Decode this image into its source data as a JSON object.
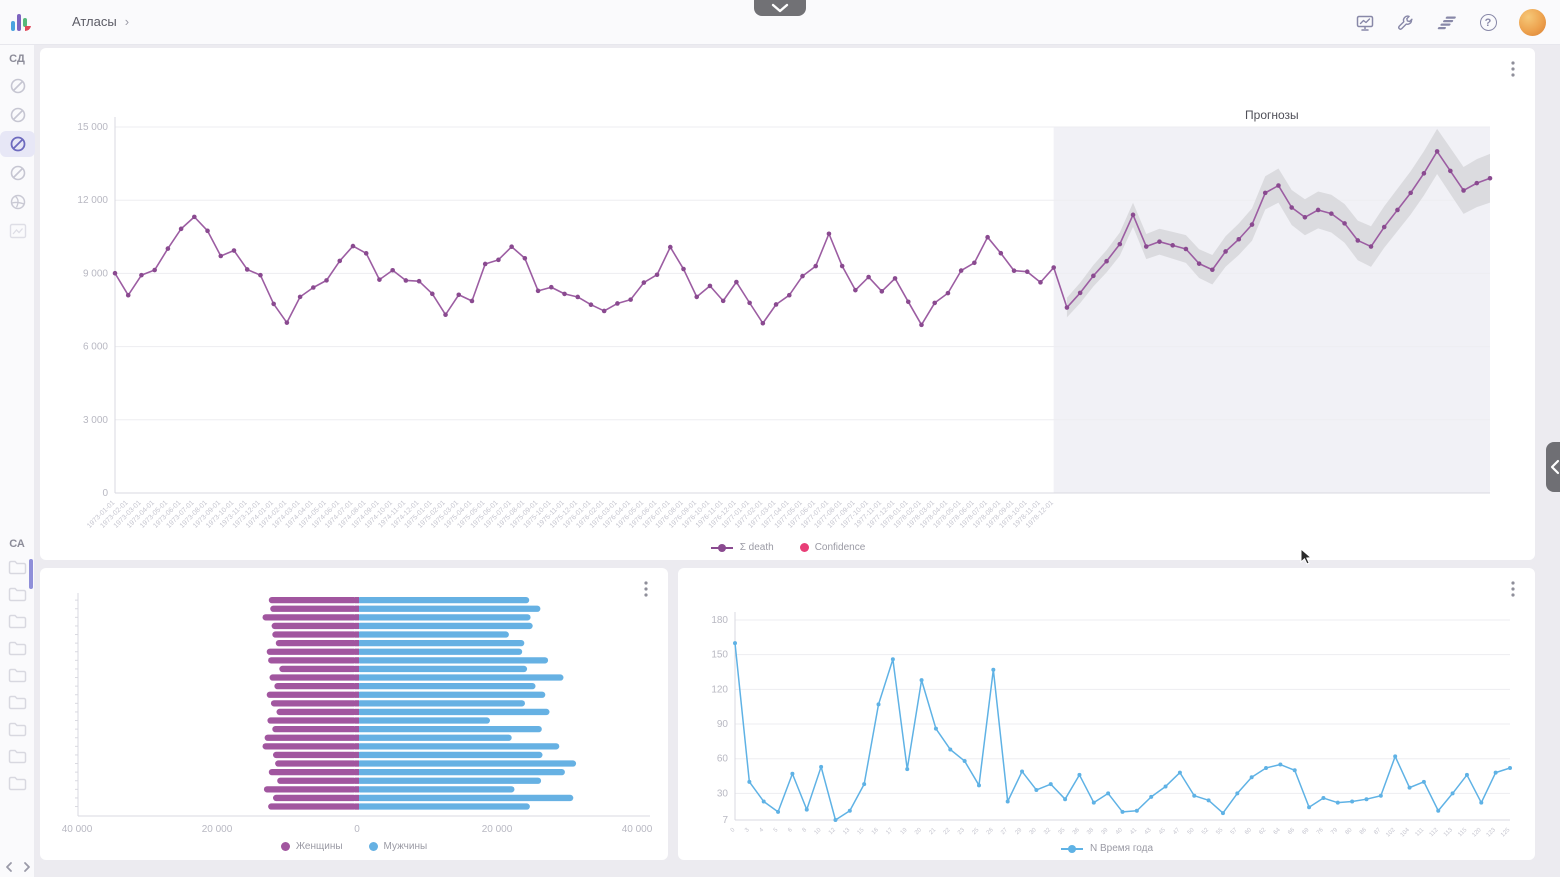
{
  "topbar": {
    "breadcrumb": "Атласы",
    "breadcrumb_arrow": "›",
    "help_glyph": "?",
    "icons": [
      "presentation-chart-icon",
      "wrench-icon",
      "stacked-lines-icon",
      "help-icon",
      "user-avatar"
    ]
  },
  "sidebar": {
    "top_label": "СД",
    "bottom_label": "СА",
    "top_icons": [
      "atlas-icon",
      "atlas-icon",
      "atlas-icon-selected",
      "atlas-icon",
      "globe-icon",
      "image-icon"
    ],
    "folder_count": 9
  },
  "colors": {
    "main_line": "#9c5da2",
    "main_dot": "#8a4a90",
    "confidence_pink": "#e83e77",
    "band_gray": "#d7d7da",
    "forecast_region": "#f1f1f6",
    "pyramid_women": "#a1569f",
    "pyramid_men": "#66b1e3",
    "season_blue": "#5fb2e5",
    "grid": "#ededf1",
    "axis": "#d9d9e0",
    "tick_text": "#b8b8c2",
    "date_text": "#c5c5cf"
  },
  "chart_data": [
    {
      "type": "line",
      "region_label": "Прогнозы",
      "ylim": [
        0,
        15000
      ],
      "ytick_values": [
        15000,
        12000,
        9000,
        6000,
        3000,
        0
      ],
      "yticks": [
        "15 000",
        "12 000",
        "9 000",
        "6 000",
        "3 000",
        "0"
      ],
      "series": [
        {
          "name": "Σ death",
          "color": "#9c5da2",
          "values": [
            9007,
            8106,
            8928,
            9137,
            10017,
            10826,
            11317,
            10744,
            9713,
            9938,
            9161,
            8927,
            7750,
            6981,
            8038,
            8422,
            8714,
            9512,
            10120,
            9823,
            8743,
            9129,
            8710,
            8680,
            8162,
            7306,
            8124,
            7870,
            9387,
            9556,
            10093,
            9620,
            8285,
            8433,
            8160,
            8034,
            7717,
            7461,
            7767,
            7925,
            8623,
            8945,
            10078,
            9179,
            8037,
            8488,
            7874,
            8647,
            7792,
            6957,
            7726,
            8106,
            8890,
            9299,
            10625,
            9302,
            8314,
            8850,
            8265,
            8796,
            7836,
            6892,
            7791,
            8192,
            9115,
            9434,
            10484,
            9827,
            9110,
            9070,
            8633,
            9240
          ]
        }
      ],
      "forecast": {
        "values": [
          7600,
          8200,
          8900,
          9500,
          10200,
          11400,
          10100,
          10300,
          10150,
          10000,
          9400,
          9150,
          9900,
          10400,
          11000,
          12300,
          12600,
          11700,
          11300,
          11600,
          11450,
          11050,
          10350,
          10100,
          10900,
          11600,
          12300,
          13100,
          14000,
          13200,
          12400,
          12700,
          12900
        ],
        "band_start_width": 400,
        "band_end_width": 1000
      },
      "x_labels": [
        "1973-01-01",
        "1973-02-01",
        "1973-03-01",
        "1973-04-01",
        "1973-05-01",
        "1973-06-01",
        "1973-07-01",
        "1973-08-01",
        "1973-09-01",
        "1973-10-01",
        "1973-11-01",
        "1973-12-01",
        "1974-01-01",
        "1974-02-01",
        "1974-03-01",
        "1974-04-01",
        "1974-05-01",
        "1974-06-01",
        "1974-07-01",
        "1974-08-01",
        "1974-09-01",
        "1974-10-01",
        "1974-11-01",
        "1974-12-01",
        "1975-01-01",
        "1975-02-01",
        "1975-03-01",
        "1975-04-01",
        "1975-05-01",
        "1975-06-01",
        "1975-07-01",
        "1975-08-01",
        "1975-09-01",
        "1975-10-01",
        "1975-11-01",
        "1975-12-01",
        "1976-01-01",
        "1976-02-01",
        "1976-03-01",
        "1976-04-01",
        "1976-05-01",
        "1976-06-01",
        "1976-07-01",
        "1976-08-01",
        "1976-09-01",
        "1976-10-01",
        "1976-11-01",
        "1976-12-01",
        "1977-01-01",
        "1977-02-01",
        "1977-03-01",
        "1977-04-01",
        "1977-05-01",
        "1977-06-01",
        "1977-07-01",
        "1977-08-01",
        "1977-09-01",
        "1977-10-01",
        "1977-11-01",
        "1977-12-01",
        "1978-01-01",
        "1978-02-01",
        "1978-03-01",
        "1978-04-01",
        "1978-05-01",
        "1978-06-01",
        "1978-07-01",
        "1978-08-01",
        "1978-09-01",
        "1978-10-01",
        "1978-11-01",
        "1978-12-01"
      ],
      "legend": [
        {
          "label": "Σ death",
          "color": "#8a4a90",
          "type": "line-dot"
        },
        {
          "label": "Confidence",
          "color": "#e83e77",
          "type": "dot"
        }
      ]
    },
    {
      "type": "pyramid-bar",
      "xlim": 40000,
      "xticks": [
        "40 000",
        "20 000",
        "0",
        "20 000",
        "40 000"
      ],
      "xtick_values": [
        -40000,
        -20000,
        0,
        20000,
        40000
      ],
      "series": [
        {
          "name": "Женщины",
          "color": "#a1569f",
          "values": [
            12600,
            12400,
            13500,
            12200,
            12100,
            11600,
            12900,
            12700,
            11100,
            12500,
            11800,
            12900,
            12300,
            11500,
            12800,
            12100,
            13200,
            13500,
            12000,
            11700,
            12600,
            11400,
            13300,
            12000,
            12700
          ]
        },
        {
          "name": "Мужчины",
          "color": "#66b1e3",
          "values": [
            24600,
            26200,
            24800,
            25100,
            21700,
            23900,
            23600,
            27300,
            24300,
            29500,
            25500,
            26900,
            24000,
            27500,
            19000,
            26400,
            22100,
            28900,
            26500,
            31300,
            29700,
            26300,
            22500,
            30900,
            24700
          ]
        }
      ],
      "legend": [
        {
          "label": "Женщины",
          "color": "#a1569f",
          "type": "dot"
        },
        {
          "label": "Мужчины",
          "color": "#66b1e3",
          "type": "dot"
        }
      ]
    },
    {
      "type": "line",
      "ylim": [
        7,
        180
      ],
      "ytick_values": [
        180,
        150,
        120,
        90,
        60,
        30,
        7
      ],
      "yticks": [
        "180",
        "150",
        "120",
        "90",
        "60",
        "30",
        "7"
      ],
      "series": [
        {
          "name": "N Время года",
          "color": "#5fb2e5",
          "values": [
            160,
            40,
            23,
            14,
            47,
            16,
            53,
            7,
            15,
            38,
            107,
            146,
            51,
            128,
            86,
            68,
            58,
            37,
            137,
            23,
            49,
            33,
            38,
            25,
            46,
            22,
            30,
            14,
            15,
            27,
            36,
            48,
            28,
            24,
            13,
            30,
            44,
            52,
            55,
            50,
            18,
            26,
            22,
            23,
            25,
            28,
            62,
            35,
            40,
            15,
            30,
            46,
            22,
            48,
            52
          ]
        }
      ],
      "x_labels": [
        "0",
        "3",
        "4",
        "5",
        "6",
        "8",
        "10",
        "12",
        "13",
        "15",
        "16",
        "17",
        "19",
        "20",
        "21",
        "22",
        "23",
        "25",
        "26",
        "27",
        "29",
        "30",
        "32",
        "35",
        "36",
        "38",
        "39",
        "40",
        "41",
        "43",
        "45",
        "47",
        "50",
        "52",
        "55",
        "57",
        "60",
        "62",
        "64",
        "66",
        "69",
        "76",
        "79",
        "80",
        "86",
        "87",
        "102",
        "104",
        "111",
        "112",
        "113",
        "115",
        "120",
        "123",
        "125"
      ],
      "legend": [
        {
          "label": "N Время года",
          "color": "#5fb2e5",
          "type": "line-dot"
        }
      ]
    }
  ]
}
